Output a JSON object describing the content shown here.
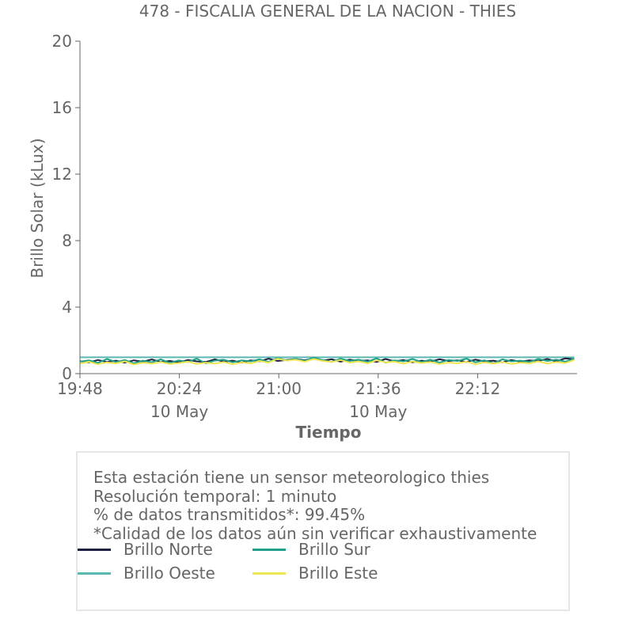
{
  "chart_data": {
    "type": "line",
    "title": "478 - FISCALIA GENERAL DE LA NACION - THIES",
    "xlabel": "Tiempo",
    "ylabel": "Brillo Solar (kLux)",
    "ylim": [
      0,
      20
    ],
    "yticks": [
      "0",
      "4",
      "8",
      "12",
      "16",
      "20"
    ],
    "xlim": [
      "19:48",
      "22:48"
    ],
    "xticks": [
      {
        "time": "19:48",
        "label": "19:48",
        "sublabel": ""
      },
      {
        "time": "20:24",
        "label": "20:24",
        "sublabel": "10 May"
      },
      {
        "time": "21:00",
        "label": "21:00",
        "sublabel": ""
      },
      {
        "time": "21:36",
        "label": "21:36",
        "sublabel": "10 May"
      },
      {
        "time": "22:12",
        "label": "22:12",
        "sublabel": ""
      }
    ],
    "grid": false,
    "legend_position": "bottom",
    "series": [
      {
        "name": "Brillo Norte",
        "color": "#1f2041",
        "x_start": "19:48",
        "x_end": "22:47",
        "values": [
          0.75,
          0.68,
          0.82,
          0.7,
          0.78,
          0.66,
          0.8,
          0.72,
          0.85,
          0.7,
          0.76,
          0.68,
          0.82,
          0.74,
          0.7,
          0.86,
          0.72,
          0.78,
          0.66,
          0.8,
          0.74,
          0.9,
          0.76,
          0.82,
          0.88,
          0.8,
          0.92,
          0.78,
          0.86,
          0.72,
          0.84,
          0.76,
          0.8,
          0.7,
          0.88,
          0.74,
          0.82,
          0.68,
          0.78,
          0.72,
          0.86,
          0.76,
          0.8,
          0.7,
          0.84,
          0.74,
          0.78,
          0.68,
          0.82,
          0.72,
          0.8,
          0.76,
          0.88,
          0.74,
          0.92,
          0.86
        ]
      },
      {
        "name": "Brillo Sur",
        "color": "#21a08a",
        "x_start": "19:48",
        "x_end": "22:47",
        "values": [
          0.72,
          0.8,
          0.65,
          0.88,
          0.7,
          0.82,
          0.62,
          0.78,
          0.68,
          0.86,
          0.64,
          0.8,
          0.7,
          0.9,
          0.62,
          0.78,
          0.84,
          0.68,
          0.8,
          0.74,
          0.86,
          0.7,
          0.94,
          0.8,
          0.88,
          0.76,
          0.96,
          0.82,
          0.7,
          0.9,
          0.76,
          0.84,
          0.72,
          0.92,
          0.66,
          0.8,
          0.74,
          0.88,
          0.7,
          0.84,
          0.66,
          0.82,
          0.76,
          0.9,
          0.68,
          0.8,
          0.62,
          0.86,
          0.74,
          0.78,
          0.7,
          0.88,
          0.76,
          0.84,
          0.72,
          0.9
        ]
      },
      {
        "name": "Brillo Oeste",
        "color": "#5ab8b0",
        "x_start": "19:48",
        "x_end": "22:47",
        "values": [
          0.98,
          0.98,
          0.98,
          0.98,
          0.98,
          0.98,
          0.98,
          0.98,
          0.98,
          0.98,
          0.98,
          0.98,
          0.98,
          0.98,
          0.98,
          0.98,
          0.98,
          0.98,
          0.98,
          0.98,
          0.98,
          0.98,
          0.98,
          0.98,
          0.98,
          0.98,
          0.98,
          0.98,
          0.98,
          0.98,
          0.98,
          0.98,
          0.98,
          0.98,
          0.98,
          0.98,
          0.98,
          0.98,
          0.98,
          0.98,
          0.98,
          0.98,
          0.98,
          0.98,
          0.98,
          0.98,
          0.98,
          0.98,
          0.98,
          0.98,
          0.98,
          0.98,
          0.98,
          0.98,
          0.98,
          0.98
        ]
      },
      {
        "name": "Brillo Este",
        "color": "#ede552",
        "x_start": "19:48",
        "x_end": "22:47",
        "values": [
          0.6,
          0.72,
          0.56,
          0.68,
          0.62,
          0.74,
          0.55,
          0.66,
          0.6,
          0.7,
          0.58,
          0.64,
          0.72,
          0.58,
          0.66,
          0.6,
          0.7,
          0.56,
          0.68,
          0.62,
          0.76,
          0.66,
          0.9,
          0.78,
          0.84,
          0.72,
          0.88,
          0.76,
          0.7,
          0.82,
          0.66,
          0.74,
          0.62,
          0.8,
          0.68,
          0.72,
          0.6,
          0.74,
          0.64,
          0.7,
          0.58,
          0.66,
          0.62,
          0.72,
          0.56,
          0.68,
          0.6,
          0.7,
          0.58,
          0.66,
          0.62,
          0.74,
          0.6,
          0.7,
          0.64,
          0.82
        ]
      }
    ]
  },
  "info": {
    "line1": "Esta estación tiene un sensor meteorologico thies",
    "line2": "Resolución temporal: 1 minuto",
    "line3": "% de datos transmitidos*: 99.45%",
    "line4": "*Calidad de los datos aún sin verificar exhaustivamente"
  },
  "legend": [
    {
      "label": "Brillo Norte",
      "color": "#1f2041"
    },
    {
      "label": "Brillo Sur",
      "color": "#21a08a"
    },
    {
      "label": "Brillo Oeste",
      "color": "#5ab8b0"
    },
    {
      "label": "Brillo Este",
      "color": "#ede552"
    }
  ]
}
